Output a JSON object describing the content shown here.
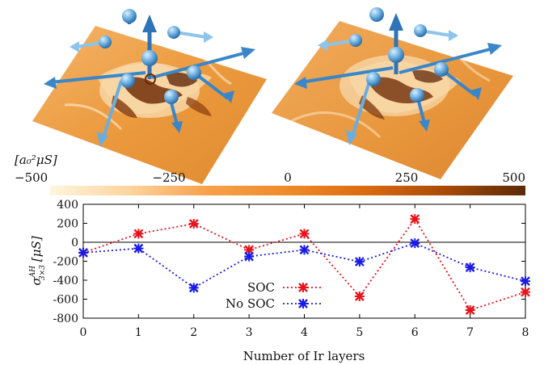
{
  "colorbar": {
    "unit_label": "[a₀²μS]",
    "ticks": [
      {
        "value": -500,
        "label": "−500"
      },
      {
        "value": -250,
        "label": "−250"
      },
      {
        "value": 0,
        "label": "0"
      },
      {
        "value": 250,
        "label": "250"
      },
      {
        "value": 500,
        "label": "500"
      }
    ],
    "range": [
      -500,
      500
    ],
    "colors": [
      "#fff5dc",
      "#fdd49e",
      "#f7a04a",
      "#ef8a2a",
      "#d96a10",
      "#a84a06",
      "#5a2a08"
    ]
  },
  "chart_data": {
    "type": "line",
    "x": [
      0,
      1,
      2,
      3,
      4,
      5,
      6,
      7,
      8
    ],
    "series": [
      {
        "name": "SOC",
        "color": "#e8121a",
        "values": [
          -110,
          90,
          195,
          -80,
          90,
          -570,
          245,
          -715,
          -525
        ]
      },
      {
        "name": "No SOC",
        "color": "#1a1ae8",
        "values": [
          -110,
          -65,
          -480,
          -150,
          -80,
          -205,
          -10,
          -265,
          -410
        ]
      }
    ],
    "xlabel": "Number of Ir layers",
    "ylabel": "σ",
    "ylabel_sup": "AH",
    "ylabel_sub": "3×3",
    "ylabel_unit": "[μS]",
    "xlim": [
      0,
      8
    ],
    "ylim": [
      -800,
      400
    ],
    "xticks": [
      0,
      1,
      2,
      3,
      4,
      5,
      6,
      7,
      8
    ],
    "yticks": [
      400,
      200,
      0,
      -200,
      -400,
      -600,
      -800
    ],
    "legend_position": "bottom-center",
    "zero_line": true
  }
}
